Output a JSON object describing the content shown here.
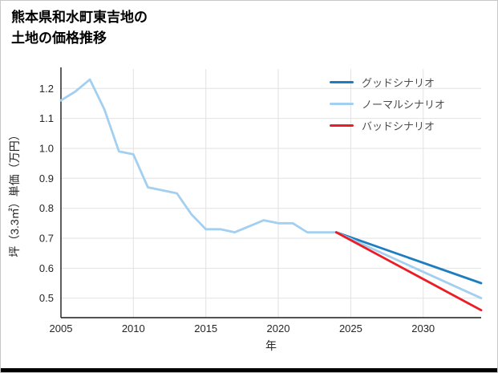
{
  "title": {
    "line1": "熊本県和水町東吉地の",
    "line2": "土地の価格推移"
  },
  "chart_data": {
    "type": "line",
    "title": "熊本県和水町東吉地の土地の価格推移",
    "xlabel": "年",
    "ylabel": "坪（3.3㎡）単価（万円）",
    "xlim": [
      2005,
      2034
    ],
    "ylim": [
      0.435,
      1.265
    ],
    "x_ticks": [
      2005,
      2010,
      2015,
      2020,
      2025,
      2030
    ],
    "y_ticks": [
      0.5,
      0.6,
      0.7,
      0.8,
      0.9,
      1.0,
      1.1,
      1.2
    ],
    "grid": true,
    "legend_position": "top-right",
    "colors": {
      "grid": "#e2e2e2",
      "axis": "#1a1a1a",
      "good": "#1d7dbf",
      "normal": "#a3cff0",
      "bad": "#eb1c24",
      "historical": "#a3cff0"
    },
    "legend": [
      {
        "label": "グッドシナリオ",
        "color_key": "good"
      },
      {
        "label": "ノーマルシナリオ",
        "color_key": "normal"
      },
      {
        "label": "バッドシナリオ",
        "color_key": "bad"
      }
    ],
    "series": [
      {
        "id": "historical",
        "color_key": "historical",
        "x": [
          2005,
          2006,
          2007,
          2008,
          2009,
          2010,
          2011,
          2012,
          2013,
          2014,
          2015,
          2016,
          2017,
          2018,
          2019,
          2020,
          2021,
          2022,
          2023,
          2024
        ],
        "values": [
          1.16,
          1.19,
          1.23,
          1.13,
          0.99,
          0.98,
          0.87,
          0.86,
          0.85,
          0.78,
          0.73,
          0.73,
          0.72,
          0.74,
          0.76,
          0.75,
          0.75,
          0.72,
          0.72,
          0.72
        ]
      },
      {
        "id": "good-scenario",
        "color_key": "good",
        "x": [
          2024,
          2034
        ],
        "values": [
          0.72,
          0.55
        ]
      },
      {
        "id": "normal-scenario",
        "color_key": "normal",
        "x": [
          2024,
          2034
        ],
        "values": [
          0.72,
          0.5
        ]
      },
      {
        "id": "bad-scenario",
        "color_key": "bad",
        "x": [
          2024,
          2034
        ],
        "values": [
          0.72,
          0.46
        ]
      }
    ]
  }
}
